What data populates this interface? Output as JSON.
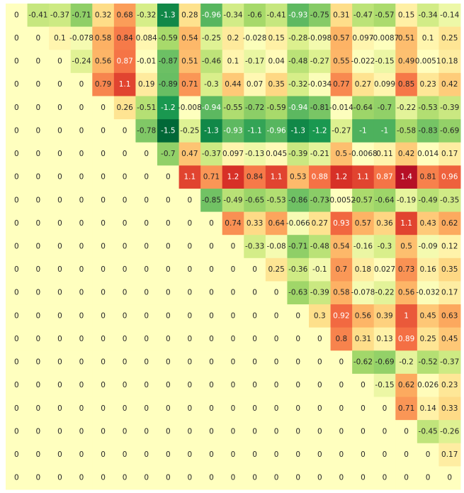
{
  "chart_data": {
    "type": "heatmap",
    "title": "",
    "xlabel": "",
    "ylabel": "",
    "rows": 21,
    "cols": 21,
    "colormap": "RdYlGn_r",
    "colors": {
      "negative_extreme": "#006837",
      "neutral": "#ffffbf",
      "positive_extreme": "#a50026"
    },
    "value_range": [
      -1.5,
      1.5
    ],
    "values": [
      [
        0,
        -0.41,
        -0.37,
        -0.71,
        0.32,
        0.68,
        -0.32,
        -1.3,
        0.28,
        -0.96,
        -0.34,
        -0.6,
        -0.41,
        -0.93,
        -0.75,
        0.31,
        -0.47,
        -0.57,
        0.15,
        -0.34,
        -0.14
      ],
      [
        0,
        0,
        0.1,
        -0.078,
        0.58,
        0.84,
        0.084,
        -0.59,
        0.54,
        -0.25,
        0.2,
        -0.028,
        0.15,
        -0.28,
        -0.098,
        0.57,
        0.097,
        -0.0087,
        0.51,
        0.1,
        0.25
      ],
      [
        0,
        0,
        0,
        -0.24,
        0.56,
        0.87,
        -0.01,
        -0.87,
        0.51,
        -0.46,
        0.1,
        -0.17,
        0.04,
        -0.48,
        -0.27,
        0.55,
        -0.022,
        -0.15,
        0.49,
        0.0051,
        0.18
      ],
      [
        0,
        0,
        0,
        0,
        0.79,
        1.1,
        0.19,
        -0.89,
        0.71,
        -0.3,
        0.44,
        0.07,
        0.35,
        -0.32,
        -0.034,
        0.77,
        0.27,
        0.099,
        0.85,
        0.23,
        0.42
      ],
      [
        0,
        0,
        0,
        0,
        0,
        0.26,
        -0.51,
        -1.2,
        -0.008,
        -0.94,
        -0.55,
        -0.72,
        -0.59,
        -0.94,
        -0.81,
        -0.014,
        -0.64,
        -0.7,
        -0.22,
        -0.53,
        -0.39
      ],
      [
        0,
        0,
        0,
        0,
        0,
        0,
        -0.78,
        -1.5,
        -0.25,
        -1.3,
        -0.93,
        -1.1,
        -0.96,
        -1.3,
        -1.2,
        -0.27,
        -1,
        -1,
        -0.58,
        -0.83,
        -0.69
      ],
      [
        0,
        0,
        0,
        0,
        0,
        0,
        0,
        -0.7,
        0.47,
        -0.37,
        0.097,
        -0.13,
        0.045,
        -0.39,
        -0.21,
        0.5,
        -0.0068,
        0.11,
        0.42,
        0.014,
        0.17
      ],
      [
        0,
        0,
        0,
        0,
        0,
        0,
        0,
        0,
        1.1,
        0.71,
        1.2,
        0.84,
        1.1,
        0.53,
        0.88,
        1.2,
        1.1,
        0.87,
        1.4,
        0.81,
        0.96
      ],
      [
        0,
        0,
        0,
        0,
        0,
        0,
        0,
        0,
        0,
        -0.85,
        -0.49,
        -0.65,
        -0.53,
        -0.86,
        -0.73,
        -0.0052,
        -0.57,
        -0.64,
        -0.19,
        -0.49,
        -0.35
      ],
      [
        0,
        0,
        0,
        0,
        0,
        0,
        0,
        0,
        0,
        0,
        0.74,
        0.33,
        0.64,
        -0.066,
        0.27,
        0.93,
        0.57,
        0.36,
        1.1,
        0.43,
        0.62
      ],
      [
        0,
        0,
        0,
        0,
        0,
        0,
        0,
        0,
        0,
        0,
        0,
        -0.33,
        -0.08,
        -0.71,
        -0.48,
        0.54,
        -0.16,
        -0.3,
        0.5,
        -0.09,
        0.12
      ],
      [
        0,
        0,
        0,
        0,
        0,
        0,
        0,
        0,
        0,
        0,
        0,
        0,
        0.25,
        -0.36,
        -0.1,
        0.7,
        0.18,
        0.027,
        0.73,
        0.16,
        0.35
      ],
      [
        0,
        0,
        0,
        0,
        0,
        0,
        0,
        0,
        0,
        0,
        0,
        0,
        0,
        -0.63,
        -0.39,
        0.58,
        -0.078,
        -0.22,
        0.56,
        -0.032,
        0.17
      ],
      [
        0,
        0,
        0,
        0,
        0,
        0,
        0,
        0,
        0,
        0,
        0,
        0,
        0,
        0,
        0.3,
        0.92,
        0.56,
        0.39,
        1,
        0.45,
        0.63
      ],
      [
        0,
        0,
        0,
        0,
        0,
        0,
        0,
        0,
        0,
        0,
        0,
        0,
        0,
        0,
        0,
        0.8,
        0.31,
        0.13,
        0.89,
        0.25,
        0.45
      ],
      [
        0,
        0,
        0,
        0,
        0,
        0,
        0,
        0,
        0,
        0,
        0,
        0,
        0,
        0,
        0,
        0,
        -0.62,
        -0.69,
        -0.2,
        -0.52,
        -0.37
      ],
      [
        0,
        0,
        0,
        0,
        0,
        0,
        0,
        0,
        0,
        0,
        0,
        0,
        0,
        0,
        0,
        0,
        0,
        -0.15,
        0.62,
        0.026,
        0.23
      ],
      [
        0,
        0,
        0,
        0,
        0,
        0,
        0,
        0,
        0,
        0,
        0,
        0,
        0,
        0,
        0,
        0,
        0,
        0,
        0.71,
        0.14,
        0.33
      ],
      [
        0,
        0,
        0,
        0,
        0,
        0,
        0,
        0,
        0,
        0,
        0,
        0,
        0,
        0,
        0,
        0,
        0,
        0,
        0,
        -0.45,
        -0.26
      ],
      [
        0,
        0,
        0,
        0,
        0,
        0,
        0,
        0,
        0,
        0,
        0,
        0,
        0,
        0,
        0,
        0,
        0,
        0,
        0,
        0,
        0.17
      ],
      [
        0,
        0,
        0,
        0,
        0,
        0,
        0,
        0,
        0,
        0,
        0,
        0,
        0,
        0,
        0,
        0,
        0,
        0,
        0,
        0,
        0
      ]
    ]
  }
}
